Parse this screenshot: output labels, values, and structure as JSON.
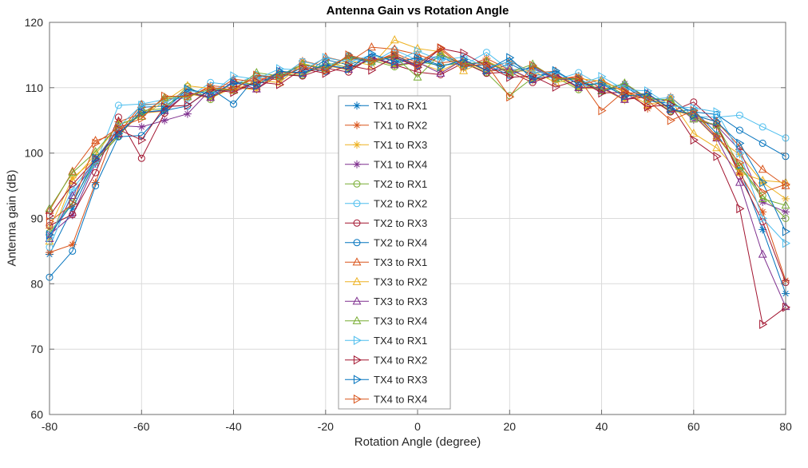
{
  "figure": {
    "title": "Antenna Gain vs Rotation Angle",
    "xlabel": "Rotation Angle (degree)",
    "ylabel": "Antenna gain (dB)"
  },
  "chart_data": {
    "type": "line",
    "title": "Antenna Gain vs Rotation Angle",
    "xlabel": "Rotation Angle (degree)",
    "ylabel": "Antenna gain (dB)",
    "xlim": [
      -80,
      80
    ],
    "ylim": [
      60,
      120
    ],
    "xticks": [
      -80,
      -60,
      -40,
      -20,
      0,
      20,
      40,
      60,
      80
    ],
    "yticks": [
      60,
      70,
      80,
      90,
      100,
      110,
      120
    ],
    "grid": true,
    "legend_position": "center",
    "grid_color": "#dadada",
    "axis_color": "#6e6e6e",
    "x": [
      -80,
      -75,
      -70,
      -65,
      -60,
      -55,
      -50,
      -45,
      -40,
      -35,
      -30,
      -25,
      -20,
      -15,
      -10,
      -5,
      0,
      5,
      10,
      15,
      20,
      25,
      30,
      35,
      40,
      45,
      50,
      55,
      60,
      65,
      70,
      75,
      80
    ],
    "series": [
      {
        "name": "TX1 to RX1",
        "color": "#0072BD",
        "marker": "asterisk",
        "values": [
          84.5,
          91.5,
          98.7,
          102.6,
          107.0,
          107.2,
          109.3,
          108.6,
          110.9,
          110.5,
          112.0,
          111.9,
          114.3,
          113.5,
          114.7,
          113.6,
          114.7,
          113.4,
          113.8,
          112.3,
          113.7,
          111.9,
          112.1,
          110.1,
          110.8,
          108.9,
          108.6,
          106.4,
          106.6,
          103.0,
          97.5,
          88.3,
          78.5
        ]
      },
      {
        "name": "TX1 to RX2",
        "color": "#D95319",
        "marker": "asterisk",
        "values": [
          84.8,
          86.0,
          95.5,
          104.8,
          106.0,
          108.3,
          108.4,
          110.3,
          110.0,
          111.5,
          111.2,
          114.1,
          113.3,
          114.6,
          113.8,
          115.3,
          113.8,
          115.9,
          113.0,
          114.5,
          112.7,
          113.0,
          111.2,
          111.8,
          109.9,
          109.9,
          106.8,
          108.6,
          105.6,
          104.1,
          97.0,
          91.0,
          80.5
        ]
      },
      {
        "name": "TX1 to RX3",
        "color": "#EDB120",
        "marker": "asterisk",
        "values": [
          88.5,
          96.2,
          99.1,
          102.8,
          106.1,
          106.4,
          109.1,
          108.4,
          110.0,
          109.7,
          112.4,
          112.1,
          113.4,
          112.7,
          114.5,
          113.4,
          113.8,
          112.6,
          114.2,
          112.5,
          112.8,
          111.1,
          111.9,
          109.9,
          109.9,
          108.1,
          109.0,
          106.6,
          105.7,
          102.2,
          99.8,
          95.5,
          93.0
        ]
      },
      {
        "name": "TX1 to RX4",
        "color": "#7E2F8E",
        "marker": "asterisk",
        "values": [
          87.5,
          90.5,
          98.4,
          104.2,
          104.0,
          105.0,
          106.0,
          109.7,
          109.5,
          111.0,
          111.7,
          113.5,
          112.8,
          114.7,
          113.9,
          114.7,
          113.3,
          115.1,
          113.5,
          113.9,
          112.2,
          113.1,
          111.3,
          111.2,
          109.4,
          110.6,
          108.3,
          108.0,
          105.1,
          104.2,
          100.5,
          92.5,
          91.0
        ]
      },
      {
        "name": "TX2 to RX1",
        "color": "#77AC30",
        "marker": "circle",
        "values": [
          87.8,
          92.5,
          98.8,
          102.6,
          106.5,
          106.8,
          110.2,
          108.2,
          111.0,
          110.5,
          112.1,
          111.9,
          113.8,
          113.1,
          114.2,
          113.2,
          114.0,
          113.4,
          113.9,
          112.3,
          108.8,
          111.5,
          111.6,
          109.7,
          110.9,
          108.9,
          108.7,
          106.4,
          106.1,
          102.6,
          98.0,
          93.5,
          90.0
        ]
      },
      {
        "name": "TX2 to RX2",
        "color": "#4DBEEE",
        "marker": "circle",
        "values": [
          85.6,
          94.0,
          98.3,
          107.3,
          107.5,
          108.2,
          108.4,
          110.8,
          110.4,
          112.0,
          111.6,
          114.0,
          113.3,
          114.5,
          113.8,
          115.8,
          114.2,
          114.9,
          113.4,
          115.4,
          112.7,
          112.9,
          111.2,
          112.3,
          110.3,
          110.4,
          108.2,
          108.5,
          105.6,
          105.5,
          105.8,
          104.0,
          102.3
        ]
      },
      {
        "name": "TX2 to RX3",
        "color": "#A2142F",
        "marker": "circle",
        "values": [
          88.9,
          90.6,
          97.0,
          105.5,
          99.2,
          106.1,
          109.3,
          108.5,
          110.2,
          109.8,
          112.0,
          111.8,
          113.0,
          112.4,
          114.7,
          113.5,
          112.4,
          112.0,
          113.8,
          112.2,
          112.4,
          110.8,
          112.1,
          110.0,
          110.1,
          108.2,
          108.6,
          106.3,
          107.8,
          104.5,
          96.5,
          89.5,
          80.2
        ]
      },
      {
        "name": "TX2 to RX4",
        "color": "#0072BD",
        "marker": "circle",
        "values": [
          81.0,
          85.0,
          95.0,
          102.5,
          102.7,
          106.5,
          107.2,
          109.9,
          107.5,
          111.8,
          111.4,
          113.1,
          112.5,
          114.9,
          114.0,
          114.9,
          113.4,
          114.7,
          113.2,
          113.5,
          111.9,
          113.3,
          111.4,
          111.4,
          109.5,
          110.2,
          108.0,
          107.6,
          106.3,
          105.9,
          103.5,
          101.5,
          99.5
        ]
      },
      {
        "name": "TX3 to RX1",
        "color": "#D95319",
        "marker": "triangle-up",
        "values": [
          91.2,
          97.2,
          101.9,
          103.0,
          107.4,
          107.6,
          109.7,
          109.0,
          111.3,
          110.9,
          112.4,
          112.3,
          114.7,
          113.9,
          116.2,
          115.9,
          115.1,
          113.8,
          114.2,
          112.7,
          114.1,
          112.3,
          112.5,
          110.5,
          111.2,
          109.3,
          109.0,
          106.8,
          105.8,
          104.8,
          101.0,
          97.5,
          95.0
        ]
      },
      {
        "name": "TX3 to RX2",
        "color": "#EDB120",
        "marker": "triangle-up",
        "values": [
          86.5,
          95.8,
          99.8,
          104.4,
          105.6,
          107.9,
          110.3,
          109.9,
          109.6,
          111.1,
          110.8,
          113.7,
          112.9,
          114.2,
          113.4,
          117.3,
          116.0,
          115.5,
          112.6,
          114.1,
          112.5,
          112.6,
          110.8,
          111.4,
          111.0,
          109.5,
          107.4,
          108.2,
          103.0,
          100.8,
          97.0,
          95.8,
          95.5
        ]
      },
      {
        "name": "TX3 to RX3",
        "color": "#7E2F8E",
        "marker": "triangle-up",
        "values": [
          86.9,
          93.5,
          99.2,
          102.9,
          106.2,
          106.5,
          109.2,
          108.5,
          111.0,
          109.8,
          112.5,
          112.2,
          113.5,
          112.8,
          114.6,
          113.5,
          113.9,
          112.2,
          114.3,
          112.6,
          112.9,
          111.2,
          112.0,
          110.0,
          110.0,
          108.2,
          109.1,
          106.7,
          105.8,
          102.3,
          95.5,
          84.5,
          76.5
        ]
      },
      {
        "name": "TX3 to RX4",
        "color": "#77AC30",
        "marker": "triangle-up",
        "values": [
          91.5,
          97.0,
          100.2,
          104.3,
          105.6,
          108.5,
          108.6,
          109.8,
          109.6,
          112.3,
          111.8,
          113.6,
          112.9,
          114.8,
          114.0,
          114.8,
          111.6,
          115.2,
          113.6,
          114.0,
          112.3,
          113.6,
          111.4,
          111.3,
          109.5,
          110.7,
          108.4,
          108.1,
          105.2,
          104.3,
          98.0,
          93.0,
          92.0
        ]
      },
      {
        "name": "TX4 to RX1",
        "color": "#4DBEEE",
        "marker": "triangle-right",
        "values": [
          87.0,
          94.5,
          98.9,
          104.0,
          107.3,
          107.6,
          109.6,
          109.0,
          111.8,
          111.3,
          112.9,
          112.7,
          114.6,
          113.9,
          115.0,
          114.0,
          115.6,
          114.2,
          114.7,
          113.1,
          114.0,
          112.3,
          112.4,
          110.5,
          111.7,
          109.7,
          109.5,
          107.2,
          106.9,
          106.3,
          100.0,
          90.0,
          86.2
        ]
      },
      {
        "name": "TX4 to RX2",
        "color": "#A2142F",
        "marker": "triangle-right",
        "values": [
          90.4,
          95.2,
          99.0,
          103.6,
          102.0,
          107.1,
          107.3,
          109.7,
          109.3,
          110.9,
          110.5,
          112.9,
          112.2,
          113.4,
          112.7,
          114.7,
          113.1,
          116.0,
          115.3,
          113.3,
          111.6,
          111.8,
          110.1,
          111.2,
          109.2,
          109.3,
          107.1,
          107.4,
          102.0,
          99.5,
          91.5,
          73.8,
          76.4
        ]
      },
      {
        "name": "TX4 to RX3",
        "color": "#0072BD",
        "marker": "triangle-right",
        "values": [
          87.5,
          92.3,
          99.2,
          103.0,
          106.2,
          106.6,
          109.8,
          109.0,
          110.7,
          110.3,
          112.5,
          112.3,
          113.5,
          112.9,
          115.2,
          114.0,
          114.5,
          113.2,
          114.3,
          112.7,
          114.6,
          111.3,
          112.6,
          110.5,
          110.6,
          108.7,
          109.1,
          106.8,
          105.8,
          104.8,
          101.5,
          95.5,
          88.0
        ]
      },
      {
        "name": "TX4 to RX4",
        "color": "#D95319",
        "marker": "triangle-right",
        "values": [
          89.5,
          92.2,
          101.5,
          103.9,
          105.3,
          108.7,
          108.7,
          110.0,
          109.7,
          111.9,
          111.5,
          113.2,
          112.6,
          115.0,
          114.1,
          115.0,
          113.5,
          116.1,
          113.3,
          113.6,
          108.6,
          113.4,
          111.5,
          111.5,
          106.5,
          109.5,
          108.1,
          105.0,
          106.5,
          102.5,
          98.5,
          94.0,
          95.2
        ]
      }
    ]
  }
}
